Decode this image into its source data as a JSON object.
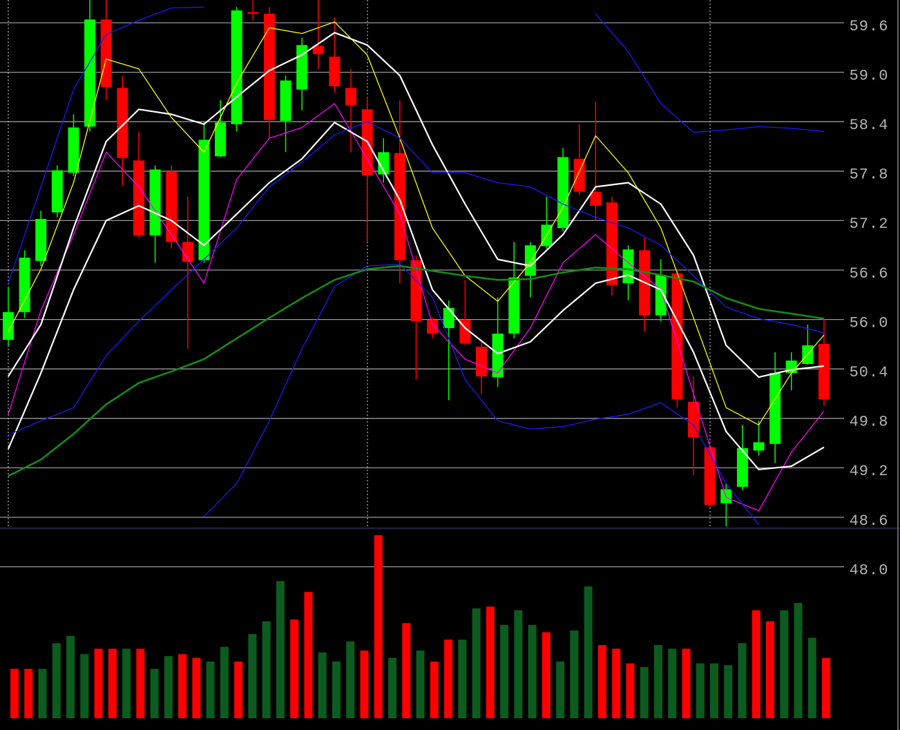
{
  "chart_data": [
    {
      "type": "candlestick",
      "open": [
        53.7,
        56.09,
        56.71,
        57.3,
        57.78,
        58.34,
        59.64,
        58.81,
        57.93,
        57.02,
        57.8,
        56.94,
        56.72,
        57.98,
        58.37,
        59.73,
        59.71,
        58.41,
        58.79,
        59.32,
        59.19,
        58.81,
        58.55,
        57.76,
        58.02,
        56.72,
        55.97,
        55.03,
        55.97,
        52.92,
        50.3,
        54.4,
        56.53,
        56.89,
        57.11,
        57.95,
        57.55,
        57.42,
        56.44,
        56.84,
        56.05,
        56.56,
        50.0,
        49.45,
        48.77,
        48.97,
        49.41,
        49.49,
        50.35,
        50.96,
        53.23
      ],
      "high": [
        56.4,
        56.84,
        57.32,
        57.87,
        58.49,
        59.88,
        59.88,
        58.96,
        58.28,
        57.87,
        57.87,
        57.49,
        58.39,
        58.66,
        59.79,
        59.88,
        59.79,
        58.96,
        59.42,
        59.88,
        59.67,
        59.04,
        58.7,
        58.2,
        58.66,
        56.78,
        56.02,
        56.23,
        56.48,
        53.47,
        56.27,
        56.94,
        56.94,
        57.49,
        58.08,
        58.37,
        58.64,
        57.49,
        56.9,
        56.99,
        56.73,
        56.61,
        50.31,
        49.47,
        49.01,
        49.72,
        49.77,
        52.29,
        52.29,
        55.42,
        56.01
      ],
      "low": [
        53.07,
        56.02,
        56.65,
        57.24,
        57.74,
        58.28,
        58.66,
        57.63,
        56.99,
        56.69,
        56.86,
        52.68,
        56.69,
        57.97,
        58.28,
        59.63,
        58.2,
        58.03,
        58.54,
        59.04,
        58.75,
        58.03,
        56.94,
        57.66,
        56.44,
        50.27,
        53.86,
        50.02,
        53.07,
        50.1,
        50.18,
        53.86,
        56.27,
        56.86,
        57.07,
        57.51,
        57.2,
        56.29,
        56.23,
        54.64,
        55.81,
        49.93,
        49.11,
        48.72,
        48.49,
        48.93,
        49.35,
        49.26,
        50.14,
        50.89,
        49.95
      ],
      "close": [
        56.09,
        56.75,
        57.22,
        57.81,
        58.33,
        59.64,
        58.82,
        57.96,
        57.02,
        57.82,
        56.94,
        56.7,
        58.18,
        58.39,
        59.75,
        59.71,
        58.42,
        58.9,
        59.33,
        59.22,
        58.83,
        58.6,
        57.75,
        58.03,
        56.72,
        55.81,
        54.4,
        56.14,
        53.31,
        50.31,
        54.4,
        56.51,
        56.9,
        57.15,
        57.97,
        57.55,
        57.38,
        56.42,
        56.85,
        56.05,
        56.54,
        50.03,
        49.57,
        48.75,
        48.94,
        49.44,
        49.51,
        50.35,
        51.35,
        53.07,
        50.03
      ],
      "up_color": "#00ff00",
      "down_color": "#ff0000",
      "series": [
        {
          "color": "#ffff00",
          "x": [
            0,
            2,
            4,
            6,
            8,
            10,
            12,
            14,
            16,
            18,
            20,
            22,
            24,
            26,
            28,
            30,
            32,
            34,
            36,
            38,
            40,
            42,
            44,
            46,
            48,
            50
          ],
          "values": [
            54.64,
            56.61,
            57.66,
            59.16,
            59.04,
            58.45,
            58.03,
            58.87,
            59.54,
            59.47,
            59.61,
            59.21,
            58.2,
            57.11,
            56.53,
            56.22,
            56.69,
            57.36,
            58.23,
            57.78,
            57.11,
            56.02,
            49.93,
            49.72,
            50.35,
            54.25
          ]
        },
        {
          "color": "#ff00ff",
          "x": [
            0,
            2,
            4,
            6,
            8,
            10,
            12,
            14,
            16,
            18,
            20,
            22,
            24,
            26,
            28,
            30,
            32,
            34,
            36,
            38,
            40,
            42,
            44,
            46,
            48,
            50
          ],
          "values": [
            49.85,
            56.11,
            57.03,
            58.03,
            57.61,
            57.03,
            56.44,
            57.7,
            58.2,
            58.33,
            58.62,
            57.95,
            57.28,
            55.42,
            51.51,
            50.35,
            55.03,
            56.69,
            57.03,
            56.69,
            56.36,
            50.1,
            48.84,
            48.68,
            49.39,
            49.89
          ]
        },
        {
          "color": "#ffffff",
          "x": [
            0,
            2,
            4,
            6,
            8,
            10,
            12,
            14,
            16,
            18,
            20,
            22,
            24,
            26,
            28,
            30,
            32,
            34,
            36,
            38,
            40,
            42,
            44,
            46,
            48,
            50
          ],
          "values": [
            50.31,
            55.42,
            57.11,
            58.16,
            58.55,
            58.49,
            58.37,
            58.7,
            59.02,
            59.21,
            59.48,
            59.33,
            58.96,
            58.12,
            57.4,
            56.73,
            56.65,
            57.03,
            57.61,
            57.66,
            57.4,
            56.78,
            53.07,
            50.3,
            50.39,
            50.73
          ]
        },
        {
          "color": "#ffffff",
          "x": [
            0,
            2,
            4,
            6,
            8,
            10,
            12,
            14,
            16,
            18,
            20,
            22,
            24,
            26,
            28,
            30,
            32,
            34,
            36,
            38,
            40,
            42,
            44,
            46,
            48,
            50
          ],
          "values": [
            49.43,
            50.35,
            56.36,
            57.2,
            57.38,
            57.2,
            56.9,
            57.28,
            57.66,
            57.95,
            58.39,
            58.16,
            57.45,
            56.36,
            55.03,
            52.14,
            53.47,
            56.11,
            56.44,
            56.54,
            56.36,
            52.29,
            49.64,
            49.18,
            49.22,
            49.45
          ]
        },
        {
          "color": "#1a1aff",
          "x": [
            0,
            2,
            4,
            6,
            8,
            10,
            12,
            14,
            16,
            18,
            20,
            22,
            24,
            26,
            28,
            30,
            32,
            34,
            36,
            38,
            40,
            42,
            44,
            46,
            48,
            50
          ],
          "values": [
            56.44,
            57.61,
            58.79,
            59.46,
            59.63,
            59.78,
            59.79,
            null,
            null,
            null,
            null,
            null,
            null,
            null,
            null,
            null,
            null,
            null,
            59.71,
            59.25,
            58.62,
            58.27,
            58.3,
            58.34,
            58.32,
            58.28
          ]
        },
        {
          "color": "#1a1aff",
          "x": [
            0,
            2,
            4,
            6,
            8,
            10,
            12,
            14,
            16,
            18,
            20,
            22,
            24,
            26,
            28,
            30,
            32,
            34,
            36,
            38,
            40,
            42,
            44,
            46,
            48,
            50
          ],
          "values": [
            49.6,
            49.77,
            49.93,
            51.9,
            55.81,
            56.36,
            56.73,
            57.11,
            57.61,
            57.91,
            58.24,
            58.4,
            58.2,
            57.78,
            57.78,
            57.66,
            57.61,
            57.4,
            57.24,
            57.11,
            56.9,
            56.53,
            56.15,
            56.01,
            55.42,
            54.48
          ]
        },
        {
          "color": "#1a1aff",
          "x": [
            0,
            2,
            4,
            6,
            8,
            10,
            12,
            14,
            16,
            18,
            20,
            22,
            24,
            26,
            28,
            30,
            32,
            34,
            36,
            38,
            40,
            42,
            44,
            46,
            48,
            50
          ],
          "values": [
            null,
            null,
            null,
            null,
            null,
            null,
            48.61,
            49.01,
            49.77,
            52.68,
            56.4,
            56.65,
            56.67,
            56.27,
            50.27,
            49.77,
            49.67,
            49.7,
            49.79,
            49.85,
            49.99,
            49.72,
            49.01,
            48.51,
            null,
            null
          ]
        },
        {
          "color": "#148c14",
          "x": [
            0,
            2,
            4,
            6,
            8,
            10,
            12,
            14,
            16,
            18,
            20,
            22,
            24,
            26,
            28,
            30,
            32,
            34,
            36,
            38,
            40,
            42,
            44,
            46,
            48,
            50
          ],
          "values": [
            49.1,
            49.3,
            49.61,
            49.97,
            50.23,
            50.37,
            51.51,
            53.86,
            56.02,
            56.26,
            56.48,
            56.61,
            56.65,
            56.59,
            56.53,
            56.48,
            56.49,
            56.57,
            56.63,
            56.61,
            56.54,
            56.46,
            56.26,
            56.13,
            56.07,
            56.01
          ]
        }
      ],
      "ylim": [
        48.0,
        59.6
      ],
      "yticks": [
        59.6,
        {
          "value": 59,
          "label": "59.0"
        },
        58.4,
        57.8,
        57.2,
        56.6,
        {
          "value": 56,
          "label": "56.0"
        },
        50.4,
        49.8,
        49.2,
        48.6,
        {
          "value": 48,
          "label": "48.0"
        }
      ],
      "grid": true
    },
    {
      "type": "bar",
      "values": [
        27,
        27,
        27,
        41,
        45,
        35,
        38,
        38,
        38,
        38,
        27,
        34,
        35,
        33,
        31,
        39,
        31,
        46,
        53,
        75,
        54,
        69,
        36,
        31,
        42,
        37,
        100,
        33,
        52,
        37,
        31,
        43,
        43,
        60,
        61,
        51,
        59,
        51,
        47,
        31,
        48,
        72,
        40,
        38,
        30,
        28,
        40,
        38,
        38,
        30,
        30,
        29,
        41,
        59,
        53,
        59,
        63,
        44,
        33
      ],
      "colors": [
        "#ff0000",
        "#ff0000",
        "#0b5c1e",
        "#0b5c1e",
        "#0b5c1e",
        "#0b5c1e",
        "#ff0000",
        "#ff0000",
        "#0b5c1e",
        "#ff0000",
        "#0b5c1e",
        "#0b5c1e",
        "#ff0000",
        "#ff0000",
        "#0b5c1e",
        "#0b5c1e",
        "#ff0000",
        "#0b5c1e",
        "#0b5c1e",
        "#0b5c1e",
        "#ff0000",
        "#ff0000",
        "#0b5c1e",
        "#0b5c1e",
        "#0b5c1e",
        "#ff0000",
        "#ff0000",
        "#0b5c1e",
        "#ff0000",
        "#0b5c1e",
        "#ff0000",
        "#ff0000",
        "#0b5c1e",
        "#0b5c1e",
        "#ff0000",
        "#0b5c1e",
        "#0b5c1e",
        "#0b5c1e",
        "#ff0000",
        "#0b5c1e",
        "#0b5c1e",
        "#0b5c1e",
        "#ff0000",
        "#ff0000",
        "#ff0000",
        "#0b5c1e",
        "#0b5c1e",
        "#0b5c1e",
        "#ff0000",
        "#0b5c1e",
        "#0b5c1e",
        "#0b5c1e",
        "#0b5c1e",
        "#ff0000",
        "#ff0000",
        "#0b5c1e",
        "#0b5c1e",
        "#0b5c1e",
        "#ff0000"
      ],
      "ylim": [
        0,
        100
      ]
    }
  ]
}
